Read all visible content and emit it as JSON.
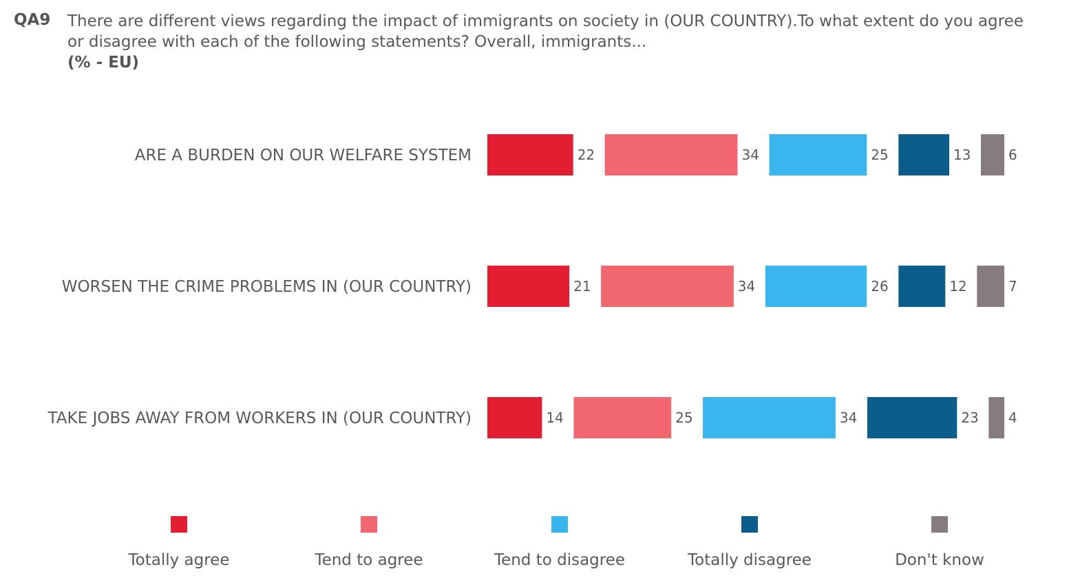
{
  "header": {
    "question_id": "QA9",
    "question_text": "There are different views regarding the impact of immigrants on society in (OUR COUNTRY).To what extent do you agree or disagree with each of the following statements? Overall, immigrants...",
    "unit_label": "(% - EU)"
  },
  "chart_data": {
    "type": "bar",
    "orientation": "horizontal",
    "layout": "segmented (gapped) stacked bars",
    "categories": [
      "ARE A BURDEN ON OUR WELFARE SYSTEM",
      "WORSEN THE CRIME PROBLEMS IN (OUR COUNTRY)",
      "TAKE JOBS AWAY FROM WORKERS IN (OUR COUNTRY)"
    ],
    "series": [
      {
        "name": "Totally agree",
        "color": "#E31E33",
        "values": [
          22,
          21,
          14
        ]
      },
      {
        "name": "Tend to agree",
        "color": "#F26670",
        "values": [
          34,
          34,
          25
        ]
      },
      {
        "name": "Tend to disagree",
        "color": "#39B6ED",
        "values": [
          25,
          26,
          34
        ]
      },
      {
        "name": "Totally disagree",
        "color": "#0B5D8C",
        "values": [
          13,
          12,
          23
        ]
      },
      {
        "name": "Don't know",
        "color": "#867B7F",
        "values": [
          6,
          7,
          4
        ]
      }
    ],
    "legend_position": "bottom",
    "grid": false,
    "data_labels": true
  },
  "legend": {
    "items": [
      {
        "label": "Totally agree",
        "color": "#E31E33"
      },
      {
        "label": "Tend to agree",
        "color": "#F26670"
      },
      {
        "label": "Tend to disagree",
        "color": "#39B6ED"
      },
      {
        "label": "Totally disagree",
        "color": "#0B5D8C"
      },
      {
        "label": "Don't know",
        "color": "#867B7F"
      }
    ]
  }
}
